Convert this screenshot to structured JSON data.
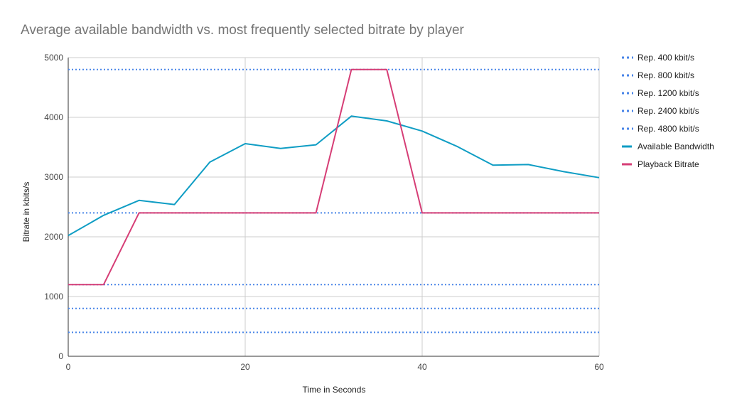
{
  "chart_data": {
    "type": "line",
    "title": "Average available bandwidth vs. most frequently selected bitrate by player",
    "xlabel": "Time in Seconds",
    "ylabel": "Bitrate in kbits/s",
    "xlim": [
      0,
      60
    ],
    "ylim": [
      0,
      5000
    ],
    "x_ticks": [
      "0",
      "20",
      "40",
      "60"
    ],
    "y_ticks": [
      "0",
      "1000",
      "2000",
      "3000",
      "4000",
      "5000"
    ],
    "grid": true,
    "legend_position": "right",
    "series": [
      {
        "name": "Rep. 400 kbit/s",
        "style": "dotted",
        "color": "#4a86e8",
        "x": [
          0,
          60
        ],
        "y": [
          400,
          400
        ]
      },
      {
        "name": "Rep. 800 kbit/s",
        "style": "dotted",
        "color": "#4a86e8",
        "x": [
          0,
          60
        ],
        "y": [
          800,
          800
        ]
      },
      {
        "name": "Rep. 1200 kbit/s",
        "style": "dotted",
        "color": "#4a86e8",
        "x": [
          0,
          60
        ],
        "y": [
          1200,
          1200
        ]
      },
      {
        "name": "Rep. 2400 kbit/s",
        "style": "dotted",
        "color": "#4a86e8",
        "x": [
          0,
          60
        ],
        "y": [
          2400,
          2400
        ]
      },
      {
        "name": "Rep. 4800 kbit/s",
        "style": "dotted",
        "color": "#4a86e8",
        "x": [
          0,
          60
        ],
        "y": [
          4800,
          4800
        ]
      },
      {
        "name": "Available Bandwidth",
        "style": "solid",
        "color": "#0f9dc4",
        "x": [
          0,
          4,
          8,
          12,
          16,
          20,
          24,
          28,
          32,
          36,
          40,
          44,
          48,
          52,
          56,
          60
        ],
        "y": [
          2020,
          2360,
          2610,
          2540,
          3250,
          3560,
          3480,
          3540,
          4020,
          3940,
          3770,
          3510,
          3200,
          3210,
          3090,
          2990
        ]
      },
      {
        "name": "Playback Bitrate",
        "style": "solid",
        "color": "#d63e76",
        "x": [
          0,
          4,
          8,
          12,
          16,
          20,
          24,
          28,
          32,
          36,
          40,
          44,
          48,
          52,
          56,
          60
        ],
        "y": [
          1200,
          1200,
          2400,
          2400,
          2400,
          2400,
          2400,
          2400,
          4800,
          4800,
          2400,
          2400,
          2400,
          2400,
          2400,
          2400
        ]
      }
    ]
  }
}
